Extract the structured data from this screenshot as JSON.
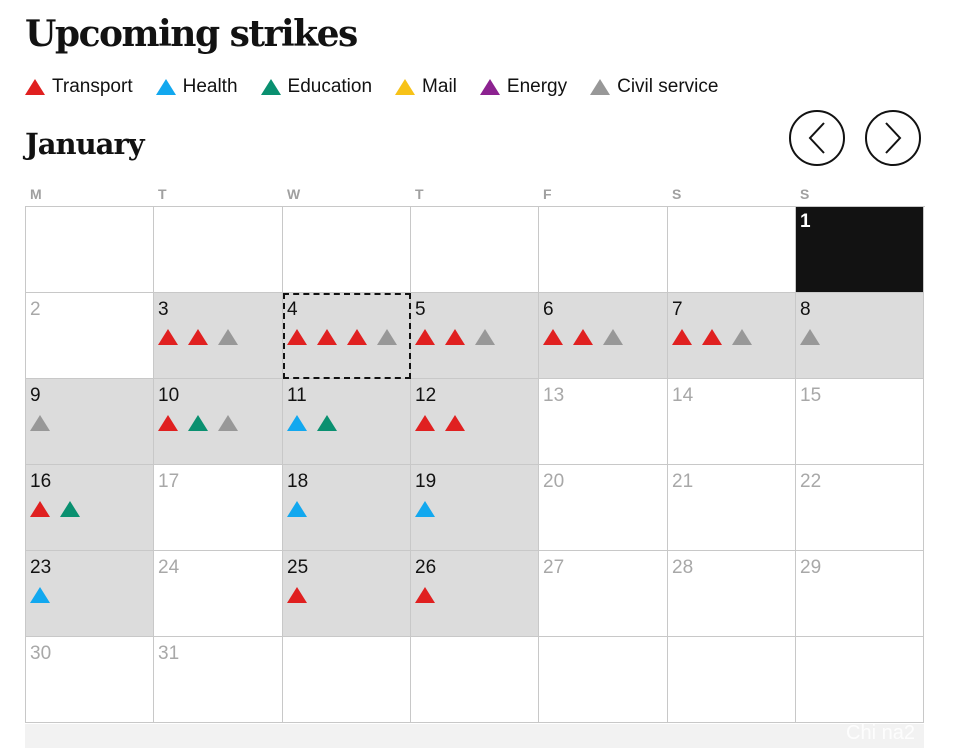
{
  "title": "Upcoming strikes",
  "colors": {
    "transport": "#e02020",
    "health": "#12a8ef",
    "education": "#0a9070",
    "mail": "#f7c218",
    "energy": "#8c2290",
    "civil": "#989898"
  },
  "legend": [
    {
      "key": "transport",
      "label": "Transport"
    },
    {
      "key": "health",
      "label": "Health"
    },
    {
      "key": "education",
      "label": "Education"
    },
    {
      "key": "mail",
      "label": "Mail"
    },
    {
      "key": "energy",
      "label": "Energy"
    },
    {
      "key": "civil",
      "label": "Civil service"
    }
  ],
  "calendar": {
    "month": "January",
    "prev_icon": "chevron-left-icon",
    "next_icon": "chevron-right-icon",
    "weekdays": [
      "M",
      "T",
      "W",
      "T",
      "F",
      "S",
      "S"
    ],
    "cells": [
      {
        "day": "",
        "muted": false,
        "shaded": false,
        "strikes": []
      },
      {
        "day": "",
        "muted": false,
        "shaded": false,
        "strikes": []
      },
      {
        "day": "",
        "muted": false,
        "shaded": false,
        "strikes": []
      },
      {
        "day": "",
        "muted": false,
        "shaded": false,
        "strikes": []
      },
      {
        "day": "",
        "muted": false,
        "shaded": false,
        "strikes": []
      },
      {
        "day": "",
        "muted": false,
        "shaded": false,
        "strikes": []
      },
      {
        "day": "1",
        "muted": false,
        "shaded": false,
        "today": true,
        "strikes": []
      },
      {
        "day": "2",
        "muted": true,
        "shaded": false,
        "strikes": []
      },
      {
        "day": "3",
        "muted": false,
        "shaded": true,
        "strikes": [
          "transport",
          "transport",
          "civil"
        ]
      },
      {
        "day": "4",
        "muted": false,
        "shaded": true,
        "selected": true,
        "strikes": [
          "transport",
          "transport",
          "transport",
          "civil"
        ]
      },
      {
        "day": "5",
        "muted": false,
        "shaded": true,
        "strikes": [
          "transport",
          "transport",
          "civil"
        ]
      },
      {
        "day": "6",
        "muted": false,
        "shaded": true,
        "strikes": [
          "transport",
          "transport",
          "civil"
        ]
      },
      {
        "day": "7",
        "muted": false,
        "shaded": true,
        "strikes": [
          "transport",
          "transport",
          "civil"
        ]
      },
      {
        "day": "8",
        "muted": false,
        "shaded": true,
        "strikes": [
          "civil"
        ]
      },
      {
        "day": "9",
        "muted": false,
        "shaded": true,
        "strikes": [
          "civil"
        ]
      },
      {
        "day": "10",
        "muted": false,
        "shaded": true,
        "strikes": [
          "transport",
          "education",
          "civil"
        ]
      },
      {
        "day": "11",
        "muted": false,
        "shaded": true,
        "strikes": [
          "health",
          "education"
        ]
      },
      {
        "day": "12",
        "muted": false,
        "shaded": true,
        "strikes": [
          "transport",
          "transport"
        ]
      },
      {
        "day": "13",
        "muted": true,
        "shaded": false,
        "strikes": []
      },
      {
        "day": "14",
        "muted": true,
        "shaded": false,
        "strikes": []
      },
      {
        "day": "15",
        "muted": true,
        "shaded": false,
        "strikes": []
      },
      {
        "day": "16",
        "muted": false,
        "shaded": true,
        "strikes": [
          "transport",
          "education"
        ]
      },
      {
        "day": "17",
        "muted": true,
        "shaded": false,
        "strikes": []
      },
      {
        "day": "18",
        "muted": false,
        "shaded": true,
        "strikes": [
          "health"
        ]
      },
      {
        "day": "19",
        "muted": false,
        "shaded": true,
        "strikes": [
          "health"
        ]
      },
      {
        "day": "20",
        "muted": true,
        "shaded": false,
        "strikes": []
      },
      {
        "day": "21",
        "muted": true,
        "shaded": false,
        "strikes": []
      },
      {
        "day": "22",
        "muted": true,
        "shaded": false,
        "strikes": []
      },
      {
        "day": "23",
        "muted": false,
        "shaded": true,
        "strikes": [
          "health"
        ]
      },
      {
        "day": "24",
        "muted": true,
        "shaded": false,
        "strikes": []
      },
      {
        "day": "25",
        "muted": false,
        "shaded": true,
        "strikes": [
          "transport"
        ]
      },
      {
        "day": "26",
        "muted": false,
        "shaded": true,
        "strikes": [
          "transport"
        ]
      },
      {
        "day": "27",
        "muted": true,
        "shaded": false,
        "strikes": []
      },
      {
        "day": "28",
        "muted": true,
        "shaded": false,
        "strikes": []
      },
      {
        "day": "29",
        "muted": true,
        "shaded": false,
        "strikes": []
      },
      {
        "day": "30",
        "muted": true,
        "shaded": false,
        "strikes": []
      },
      {
        "day": "31",
        "muted": true,
        "shaded": false,
        "strikes": []
      },
      {
        "day": "",
        "muted": false,
        "shaded": false,
        "strikes": []
      },
      {
        "day": "",
        "muted": false,
        "shaded": false,
        "strikes": []
      },
      {
        "day": "",
        "muted": false,
        "shaded": false,
        "strikes": []
      },
      {
        "day": "",
        "muted": false,
        "shaded": false,
        "strikes": []
      },
      {
        "day": "",
        "muted": false,
        "shaded": false,
        "strikes": []
      }
    ]
  },
  "watermark": "Chi na2"
}
